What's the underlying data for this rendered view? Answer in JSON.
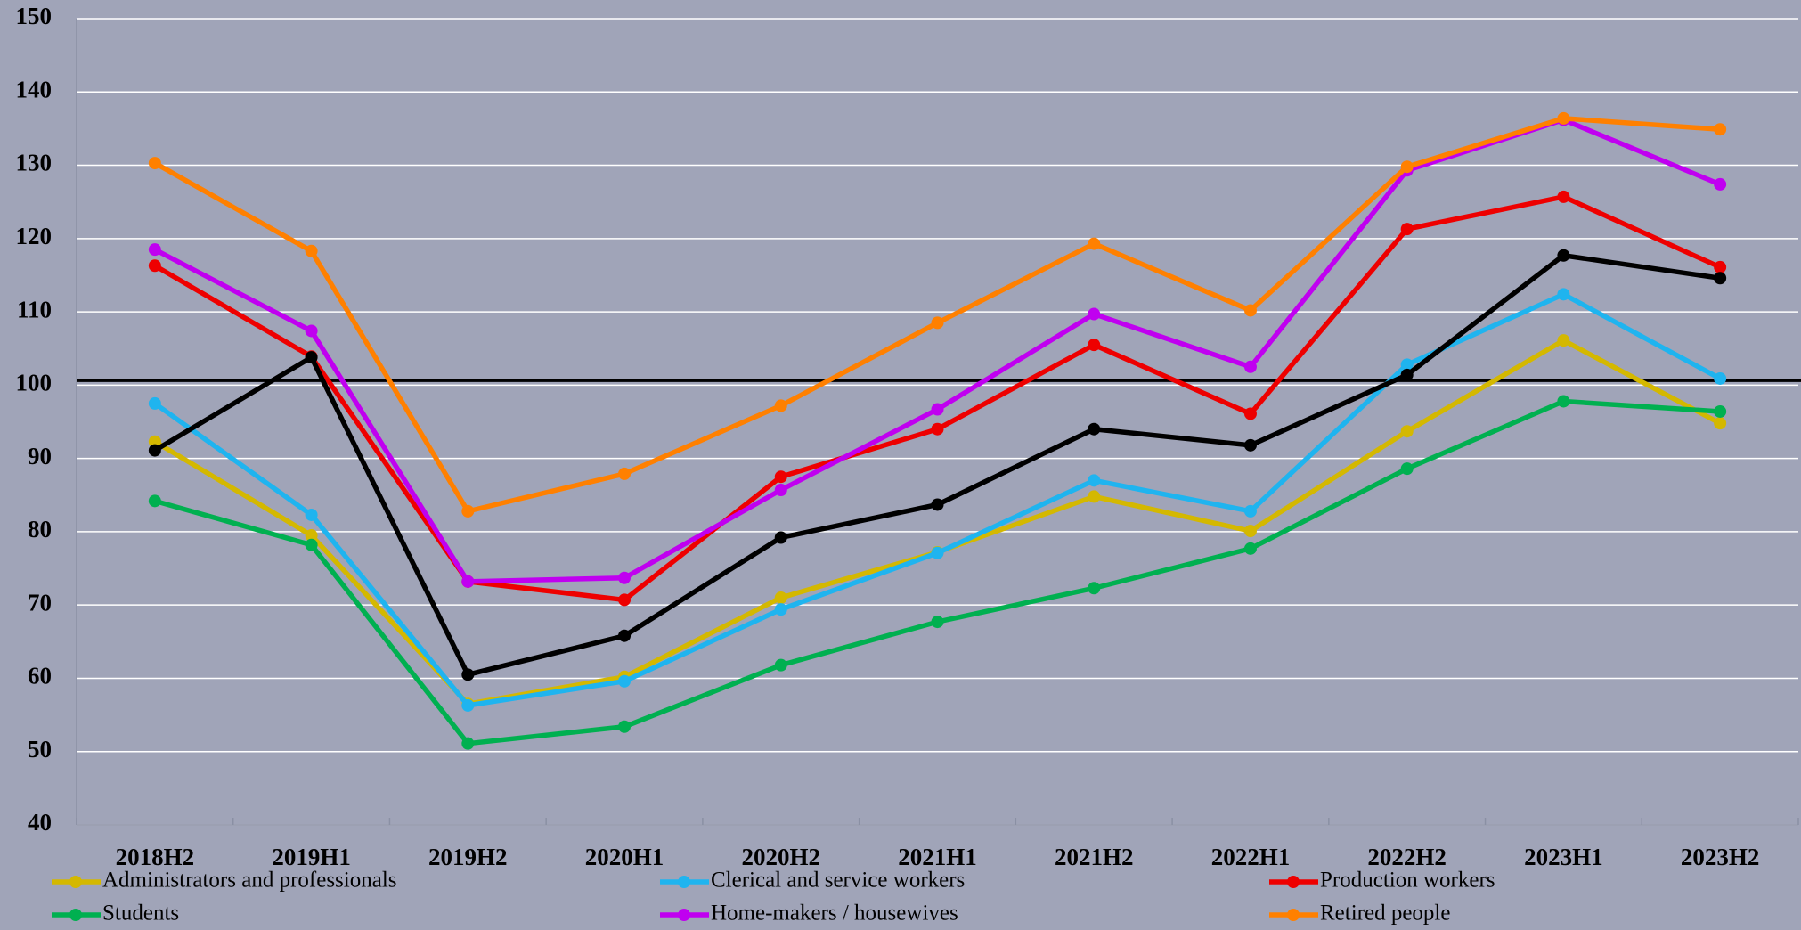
{
  "chart_data": {
    "type": "line",
    "categories": [
      "2018H2",
      "2019H1",
      "2019H2",
      "2020H1",
      "2020H2",
      "2021H1",
      "2021H2",
      "2022H1",
      "2022H2",
      "2023H1",
      "2023H2"
    ],
    "ylim": [
      40,
      150
    ],
    "yticks": [
      40,
      50,
      60,
      70,
      80,
      90,
      100,
      110,
      120,
      130,
      140,
      150
    ],
    "grid": true,
    "reference_line": 100.6,
    "series": [
      {
        "name": "Administrators and professionals",
        "color": "#d4b800",
        "values": [
          92.3,
          79.5,
          56.5,
          60.2,
          71,
          77.2,
          84.8,
          80.1,
          93.7,
          106.1,
          94.8
        ]
      },
      {
        "name": "Clerical and service workers",
        "color": "#1fb4ef",
        "values": [
          97.5,
          82.3,
          56.3,
          59.6,
          69.4,
          77.1,
          87,
          82.8,
          102.8,
          112.4,
          100.9
        ]
      },
      {
        "name": "Production workers",
        "color": "#ee0000",
        "values": [
          116.3,
          103.9,
          73.2,
          70.7,
          87.5,
          94,
          105.5,
          96.1,
          121.3,
          125.7,
          116.1
        ]
      },
      {
        "name": "Students",
        "color": "#00b050",
        "values": [
          84.2,
          78.2,
          51.1,
          53.4,
          61.8,
          67.7,
          72.3,
          77.7,
          88.6,
          97.8,
          96.4
        ]
      },
      {
        "name": "Home-makers / housewives",
        "color": "#c000f0",
        "values": [
          118.5,
          107.4,
          73.2,
          73.7,
          85.7,
          96.7,
          109.7,
          102.5,
          129.3,
          136.2,
          127.4
        ]
      },
      {
        "name": "Retired people",
        "color": "#ff8000",
        "values": [
          130.3,
          118.3,
          82.8,
          87.9,
          97.2,
          108.5,
          119.3,
          110.2,
          129.8,
          136.4,
          134.9
        ]
      },
      {
        "color": "#000000",
        "values": [
          91.1,
          103.8,
          60.5,
          65.8,
          79.2,
          83.7,
          94,
          91.8,
          101.4,
          117.7,
          114.6
        ]
      }
    ]
  }
}
